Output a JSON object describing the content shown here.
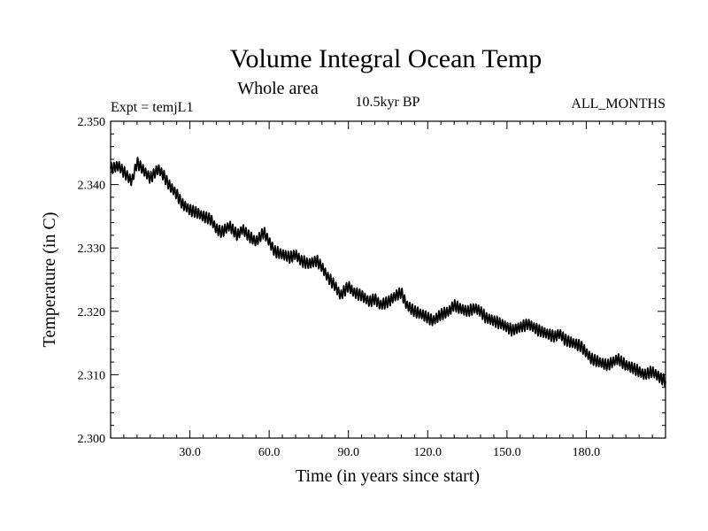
{
  "chart_data": {
    "type": "line",
    "title": "Volume Integral Ocean Temp",
    "subtitle": "Whole area",
    "expt_label": "Expt = temjL1",
    "period_label": "10.5kyr BP",
    "months_label": "ALL_MONTHS",
    "xlabel": "Time (in years since start)",
    "ylabel": "Temperature (in C)",
    "xlim": [
      0,
      210
    ],
    "ylim": [
      2.3,
      2.35
    ],
    "xticks": [
      30,
      60,
      90,
      120,
      150,
      180
    ],
    "xtick_labels": [
      "30.0",
      "60.0",
      "90.0",
      "120.0",
      "150.0",
      "180.0"
    ],
    "yticks": [
      2.3,
      2.31,
      2.32,
      2.33,
      2.34,
      2.35
    ],
    "ytick_labels": [
      "2.300",
      "2.310",
      "2.320",
      "2.330",
      "2.340",
      "2.350"
    ],
    "series": [
      {
        "name": "Volume Integral Ocean Temp",
        "line_color": "#000000",
        "seasonal_amplitude": 0.0011,
        "x": [
          0,
          3,
          5,
          8,
          10,
          13,
          15,
          18,
          20,
          22,
          25,
          27,
          30,
          33,
          35,
          38,
          40,
          42,
          45,
          48,
          50,
          52,
          55,
          58,
          60,
          62,
          65,
          68,
          70,
          72,
          75,
          78,
          80,
          82,
          85,
          87,
          90,
          92,
          95,
          98,
          100,
          102,
          105,
          108,
          110,
          112,
          115,
          118,
          120,
          122,
          125,
          128,
          130,
          132,
          135,
          138,
          140,
          142,
          145,
          148,
          150,
          152,
          155,
          158,
          160,
          162,
          165,
          168,
          170,
          172,
          175,
          178,
          180,
          182,
          185,
          188,
          190,
          192,
          195,
          198,
          200,
          202,
          205,
          208,
          210
        ],
        "y": [
          2.3425,
          2.343,
          2.342,
          2.3405,
          2.3435,
          2.342,
          2.341,
          2.3425,
          2.3415,
          2.34,
          2.3385,
          2.337,
          2.336,
          2.3355,
          2.335,
          2.3345,
          2.333,
          2.3325,
          2.3335,
          2.332,
          2.333,
          2.332,
          2.331,
          2.3325,
          2.331,
          2.3295,
          2.329,
          2.3285,
          2.329,
          2.328,
          2.3275,
          2.328,
          2.327,
          2.3255,
          2.324,
          2.3225,
          2.324,
          2.323,
          2.3225,
          2.3215,
          2.322,
          2.321,
          2.3215,
          2.3225,
          2.323,
          2.321,
          2.32,
          2.3195,
          2.319,
          2.3185,
          2.3195,
          2.32,
          2.321,
          2.3205,
          2.32,
          2.3205,
          2.32,
          2.319,
          2.3185,
          2.318,
          2.3175,
          2.317,
          2.3175,
          2.318,
          2.3175,
          2.317,
          2.3165,
          2.316,
          2.3165,
          2.3155,
          2.315,
          2.3145,
          2.3135,
          2.3125,
          2.312,
          2.3115,
          2.312,
          2.3125,
          2.3115,
          2.311,
          2.3105,
          2.31,
          2.3105,
          2.3095,
          2.309
        ]
      }
    ]
  }
}
